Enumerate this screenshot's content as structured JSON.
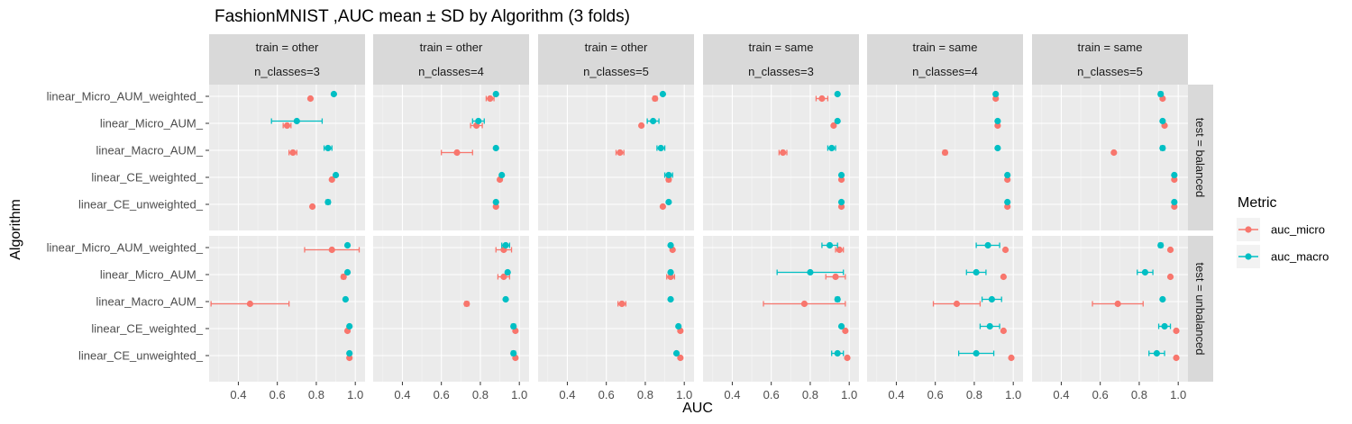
{
  "chart_data": {
    "type": "scatter",
    "title": "FashionMNIST ,AUC mean ± SD by Algorithm (3 folds)",
    "xlabel": "AUC",
    "ylabel": "Algorithm",
    "xlim": [
      0.25,
      1.05
    ],
    "xticks": [
      0.4,
      0.6,
      0.8,
      1.0
    ],
    "xtick_labels": [
      "0.4",
      "0.6",
      "0.8",
      "1.0"
    ],
    "categories": [
      "linear_Micro_AUM_weighted_",
      "linear_Micro_AUM_",
      "linear_Macro_AUM_",
      "linear_CE_weighted_",
      "linear_CE_unweighted_"
    ],
    "column_facets": [
      {
        "line1": "train = other",
        "line2": "n_classes=3"
      },
      {
        "line1": "train = other",
        "line2": "n_classes=4"
      },
      {
        "line1": "train = other",
        "line2": "n_classes=5"
      },
      {
        "line1": "train = same",
        "line2": "n_classes=3"
      },
      {
        "line1": "train = same",
        "line2": "n_classes=4"
      },
      {
        "line1": "train = same",
        "line2": "n_classes=5"
      }
    ],
    "row_facets": [
      "test = balanced",
      "test = unbalanced"
    ],
    "legend": {
      "title": "Metric",
      "position": "right",
      "entries": [
        {
          "name": "auc_micro",
          "color": "#F8766D"
        },
        {
          "name": "auc_macro",
          "color": "#00BFC4"
        }
      ]
    },
    "grid": true,
    "panels": [
      {
        "row": 0,
        "col": 0,
        "micro": [
          [
            0.77,
            0
          ],
          [
            0.65,
            0.02
          ],
          [
            0.68,
            0.02
          ],
          [
            0.88,
            0
          ],
          [
            0.78,
            0
          ]
        ],
        "macro": [
          [
            0.89,
            0
          ],
          [
            0.7,
            0.13
          ],
          [
            0.86,
            0.02
          ],
          [
            0.9,
            0
          ],
          [
            0.86,
            0.01
          ]
        ]
      },
      {
        "row": 0,
        "col": 1,
        "micro": [
          [
            0.85,
            0.02
          ],
          [
            0.78,
            0.03
          ],
          [
            0.68,
            0.08
          ],
          [
            0.9,
            0
          ],
          [
            0.88,
            0
          ]
        ],
        "macro": [
          [
            0.88,
            0
          ],
          [
            0.79,
            0.03
          ],
          [
            0.88,
            0
          ],
          [
            0.91,
            0
          ],
          [
            0.88,
            0
          ]
        ]
      },
      {
        "row": 0,
        "col": 2,
        "micro": [
          [
            0.85,
            0.01
          ],
          [
            0.78,
            0
          ],
          [
            0.67,
            0.02
          ],
          [
            0.92,
            0.01
          ],
          [
            0.89,
            0
          ]
        ],
        "macro": [
          [
            0.89,
            0
          ],
          [
            0.84,
            0.03
          ],
          [
            0.88,
            0.02
          ],
          [
            0.92,
            0.02
          ],
          [
            0.92,
            0
          ]
        ]
      },
      {
        "row": 0,
        "col": 3,
        "micro": [
          [
            0.86,
            0.03
          ],
          [
            0.92,
            0
          ],
          [
            0.66,
            0.02
          ],
          [
            0.96,
            0
          ],
          [
            0.96,
            0
          ]
        ],
        "macro": [
          [
            0.94,
            0
          ],
          [
            0.94,
            0
          ],
          [
            0.91,
            0.02
          ],
          [
            0.96,
            0
          ],
          [
            0.96,
            0
          ]
        ]
      },
      {
        "row": 0,
        "col": 4,
        "micro": [
          [
            0.91,
            0
          ],
          [
            0.92,
            0
          ],
          [
            0.65,
            0.01
          ],
          [
            0.97,
            0
          ],
          [
            0.97,
            0
          ]
        ],
        "macro": [
          [
            0.91,
            0
          ],
          [
            0.92,
            0
          ],
          [
            0.92,
            0
          ],
          [
            0.97,
            0
          ],
          [
            0.97,
            0
          ]
        ]
      },
      {
        "row": 0,
        "col": 5,
        "micro": [
          [
            0.92,
            0
          ],
          [
            0.93,
            0
          ],
          [
            0.67,
            0
          ],
          [
            0.98,
            0
          ],
          [
            0.98,
            0
          ]
        ],
        "macro": [
          [
            0.91,
            0.01
          ],
          [
            0.92,
            0
          ],
          [
            0.92,
            0.01
          ],
          [
            0.98,
            0
          ],
          [
            0.98,
            0
          ]
        ]
      },
      {
        "row": 1,
        "col": 0,
        "micro": [
          [
            0.88,
            0.14
          ],
          [
            0.94,
            0.01
          ],
          [
            0.46,
            0.2
          ],
          [
            0.96,
            0
          ],
          [
            0.97,
            0
          ]
        ],
        "macro": [
          [
            0.96,
            0
          ],
          [
            0.96,
            0
          ],
          [
            0.95,
            0
          ],
          [
            0.97,
            0
          ],
          [
            0.97,
            0
          ]
        ]
      },
      {
        "row": 1,
        "col": 1,
        "micro": [
          [
            0.92,
            0.04
          ],
          [
            0.92,
            0.03
          ],
          [
            0.73,
            0.01
          ],
          [
            0.98,
            0
          ],
          [
            0.98,
            0
          ]
        ],
        "macro": [
          [
            0.93,
            0.02
          ],
          [
            0.94,
            0
          ],
          [
            0.93,
            0
          ],
          [
            0.97,
            0.01
          ],
          [
            0.97,
            0.01
          ]
        ]
      },
      {
        "row": 1,
        "col": 2,
        "micro": [
          [
            0.94,
            0
          ],
          [
            0.93,
            0.02
          ],
          [
            0.68,
            0.02
          ],
          [
            0.98,
            0
          ],
          [
            0.98,
            0
          ]
        ],
        "macro": [
          [
            0.93,
            0
          ],
          [
            0.93,
            0
          ],
          [
            0.93,
            0
          ],
          [
            0.97,
            0
          ],
          [
            0.96,
            0
          ]
        ]
      },
      {
        "row": 1,
        "col": 3,
        "micro": [
          [
            0.95,
            0.02
          ],
          [
            0.93,
            0.05
          ],
          [
            0.77,
            0.21
          ],
          [
            0.98,
            0
          ],
          [
            0.99,
            0
          ]
        ],
        "macro": [
          [
            0.9,
            0.04
          ],
          [
            0.8,
            0.17
          ],
          [
            0.94,
            0.01
          ],
          [
            0.96,
            0
          ],
          [
            0.94,
            0.03
          ]
        ]
      },
      {
        "row": 1,
        "col": 4,
        "micro": [
          [
            0.96,
            0
          ],
          [
            0.95,
            0
          ],
          [
            0.71,
            0.12
          ],
          [
            0.95,
            0
          ],
          [
            0.99,
            0
          ]
        ],
        "macro": [
          [
            0.87,
            0.06
          ],
          [
            0.81,
            0.05
          ],
          [
            0.89,
            0.05
          ],
          [
            0.88,
            0.05
          ],
          [
            0.81,
            0.09
          ]
        ]
      },
      {
        "row": 1,
        "col": 5,
        "micro": [
          [
            0.96,
            0
          ],
          [
            0.96,
            0
          ],
          [
            0.69,
            0.13
          ],
          [
            0.99,
            0
          ],
          [
            0.99,
            0
          ]
        ],
        "macro": [
          [
            0.91,
            0.01
          ],
          [
            0.83,
            0.04
          ],
          [
            0.92,
            0
          ],
          [
            0.93,
            0.03
          ],
          [
            0.89,
            0.04
          ]
        ]
      }
    ]
  }
}
